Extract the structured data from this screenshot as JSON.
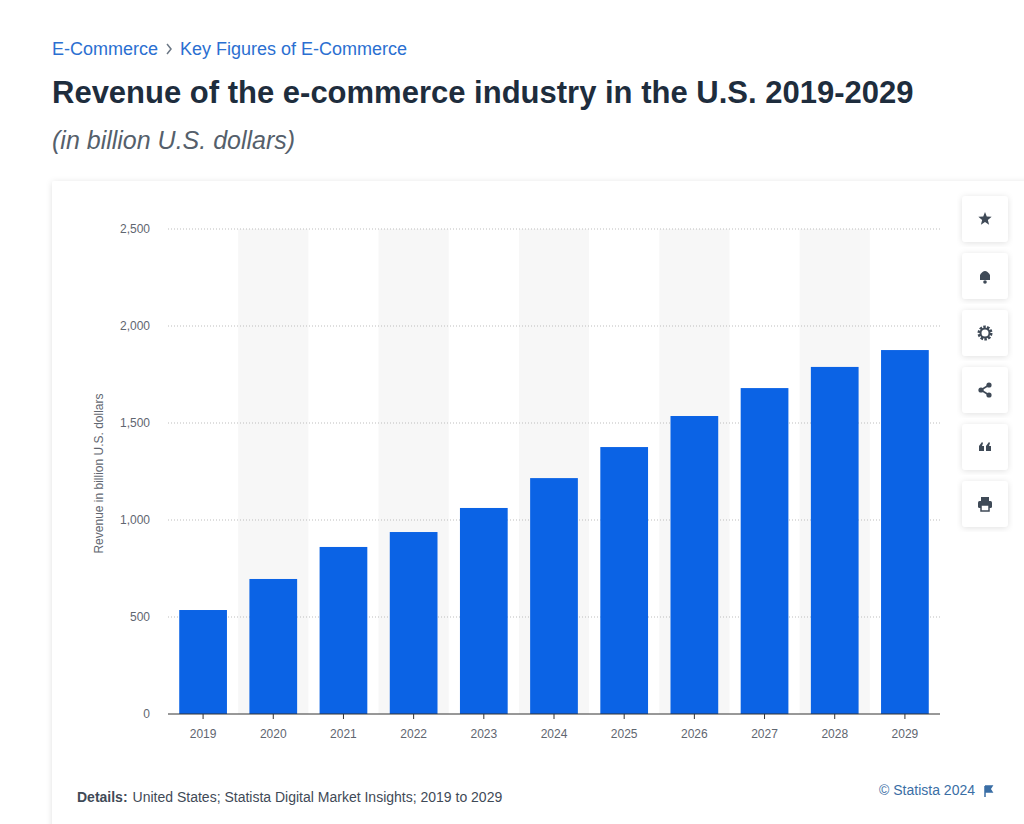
{
  "page": {
    "breadcrumb": [
      "E-Commerce",
      "Key Figures of E-Commerce"
    ],
    "details_label": "Details:",
    "details": "United States; Statista Digital Market Insights; 2019 to 2029",
    "source": "© Statista 2024"
  },
  "chart_data": {
    "type": "bar",
    "title": "Revenue of the e-commerce industry in the U.S. 2019-2029",
    "subtitle": "(in billion U.S. dollars)",
    "y_label": "Revenue in billion U.S. dollars",
    "categories": [
      "2019",
      "2020",
      "2021",
      "2022",
      "2023",
      "2024",
      "2025",
      "2026",
      "2027",
      "2028",
      "2029"
    ],
    "values": [
      536,
      696,
      861,
      938,
      1062,
      1216,
      1376,
      1536,
      1680,
      1789,
      1876
    ],
    "color": "#0b63e5",
    "ylim": [
      0,
      2500
    ],
    "yticks": [
      0,
      500,
      {
        "value": 1000,
        "label": "1,000"
      },
      {
        "value": 1500,
        "label": "1,500"
      },
      {
        "value": 2000,
        "label": "2,000"
      },
      {
        "value": 2500,
        "label": "2,500"
      }
    ],
    "grid": true
  }
}
